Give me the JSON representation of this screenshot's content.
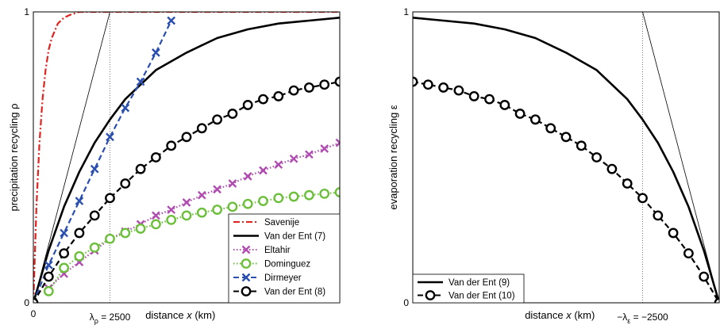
{
  "chart_data": [
    {
      "type": "line",
      "title": "",
      "xlabel": "distance x (km)",
      "ylabel": "precipitation recycling ρ",
      "xlim": [
        0,
        10000
      ],
      "ylim": [
        0,
        1
      ],
      "x_ticks": [
        {
          "value": 0,
          "label": "0"
        }
      ],
      "y_ticks": [
        {
          "value": 0,
          "label": "0"
        },
        {
          "value": 1,
          "label": "1"
        }
      ],
      "reference_lines": [
        {
          "kind": "vertical-dotted",
          "x": 2500,
          "label_prefix": "λ",
          "label_sub": "ρ",
          "label_value": "= 2500"
        },
        {
          "kind": "tangent-thin",
          "x": [
            0,
            2500
          ],
          "y": [
            0,
            1
          ]
        }
      ],
      "grid": false,
      "legend_position": "bottom-right",
      "series": [
        {
          "name": "Savenije",
          "style": "dash-dot",
          "color": "#e0231f",
          "marker": "none",
          "x": [
            0,
            100,
            200,
            300,
            400,
            500,
            600,
            800,
            1000,
            1200,
            1500,
            2000,
            3000,
            5000,
            10000
          ],
          "y": [
            0,
            0.33,
            0.55,
            0.7,
            0.8,
            0.87,
            0.91,
            0.96,
            0.98,
            0.99,
            1.0,
            1.0,
            1.0,
            1.0,
            1.0
          ]
        },
        {
          "name": "Van der Ent (7)",
          "style": "solid",
          "color": "#000000",
          "marker": "none",
          "x": [
            0,
            500,
            1000,
            1500,
            2000,
            2500,
            3000,
            3500,
            4000,
            5000,
            6000,
            7000,
            8000,
            9000,
            10000
          ],
          "y": [
            0,
            0.18,
            0.33,
            0.45,
            0.55,
            0.63,
            0.7,
            0.75,
            0.8,
            0.86,
            0.91,
            0.94,
            0.96,
            0.97,
            0.98
          ]
        },
        {
          "name": "Eltahir",
          "style": "dotted",
          "color": "#b04cb0",
          "marker": "x",
          "x": [
            500,
            1000,
            1500,
            2000,
            2500,
            3000,
            3500,
            4000,
            4500,
            5000,
            5500,
            6000,
            6500,
            7000,
            7500,
            8000,
            8500,
            9000,
            9500,
            10000
          ],
          "y": [
            0.05,
            0.1,
            0.14,
            0.18,
            0.22,
            0.245,
            0.27,
            0.3,
            0.32,
            0.345,
            0.37,
            0.39,
            0.41,
            0.435,
            0.455,
            0.475,
            0.495,
            0.51,
            0.53,
            0.55
          ]
        },
        {
          "name": "Dominguez",
          "style": "dotted",
          "color": "#6bbf3a",
          "marker": "o",
          "x": [
            500,
            1000,
            1500,
            2000,
            2500,
            3000,
            3500,
            4000,
            4500,
            5000,
            5500,
            6000,
            6500,
            7000,
            7500,
            8000,
            8500,
            9000,
            9500,
            10000
          ],
          "y": [
            0.04,
            0.12,
            0.16,
            0.19,
            0.22,
            0.24,
            0.255,
            0.27,
            0.285,
            0.3,
            0.31,
            0.32,
            0.33,
            0.34,
            0.35,
            0.36,
            0.365,
            0.37,
            0.375,
            0.38
          ]
        },
        {
          "name": "Dirmeyer",
          "style": "dashed",
          "color": "#2a4fb0",
          "marker": "x",
          "x": [
            0,
            500,
            1000,
            1500,
            2000,
            2500,
            3000,
            3500,
            4000,
            4500
          ],
          "y": [
            0,
            0.13,
            0.24,
            0.35,
            0.46,
            0.57,
            0.67,
            0.76,
            0.86,
            0.97
          ]
        },
        {
          "name": "Van der Ent (8)",
          "style": "dashed",
          "color": "#000000",
          "marker": "o",
          "x": [
            0,
            500,
            1000,
            1500,
            2000,
            2500,
            3000,
            3500,
            4000,
            4500,
            5000,
            5500,
            6000,
            6500,
            7000,
            7500,
            8000,
            8500,
            9000,
            9500,
            10000
          ],
          "y": [
            0,
            0.09,
            0.17,
            0.24,
            0.3,
            0.36,
            0.41,
            0.46,
            0.5,
            0.54,
            0.57,
            0.6,
            0.63,
            0.65,
            0.68,
            0.7,
            0.71,
            0.73,
            0.74,
            0.75,
            0.76
          ]
        }
      ]
    },
    {
      "type": "line",
      "title": "",
      "xlabel": "distance x (km)",
      "ylabel": "evaporation recycling ε",
      "xlim": [
        -10000,
        0
      ],
      "ylim": [
        0,
        1
      ],
      "x_ticks": [],
      "y_ticks": [
        {
          "value": 0,
          "label": "0"
        },
        {
          "value": 1,
          "label": "1"
        }
      ],
      "reference_lines": [
        {
          "kind": "vertical-dotted",
          "x": -2500,
          "label_prefix": "−λ",
          "label_sub": "ε",
          "label_value": "= −2500"
        },
        {
          "kind": "tangent-thin",
          "x": [
            -2500,
            0
          ],
          "y": [
            1,
            0
          ]
        }
      ],
      "grid": false,
      "legend_position": "bottom-left",
      "series": [
        {
          "name": "Van der Ent (9)",
          "style": "solid",
          "color": "#000000",
          "marker": "none",
          "x": [
            -10000,
            -9000,
            -8000,
            -7000,
            -6000,
            -5000,
            -4000,
            -3000,
            -2500,
            -2000,
            -1500,
            -1000,
            -500,
            0
          ],
          "y": [
            0.98,
            0.97,
            0.96,
            0.94,
            0.91,
            0.86,
            0.8,
            0.7,
            0.63,
            0.55,
            0.45,
            0.33,
            0.18,
            0
          ]
        },
        {
          "name": "Van der Ent (10)",
          "style": "dashed",
          "color": "#000000",
          "marker": "o",
          "x": [
            -10000,
            -9500,
            -9000,
            -8500,
            -8000,
            -7500,
            -7000,
            -6500,
            -6000,
            -5500,
            -5000,
            -4500,
            -4000,
            -3500,
            -3000,
            -2500,
            -2000,
            -1500,
            -1000,
            -500,
            0
          ],
          "y": [
            0.76,
            0.75,
            0.74,
            0.73,
            0.71,
            0.7,
            0.68,
            0.65,
            0.63,
            0.6,
            0.57,
            0.54,
            0.5,
            0.46,
            0.41,
            0.36,
            0.3,
            0.24,
            0.17,
            0.09,
            0
          ]
        }
      ]
    }
  ]
}
